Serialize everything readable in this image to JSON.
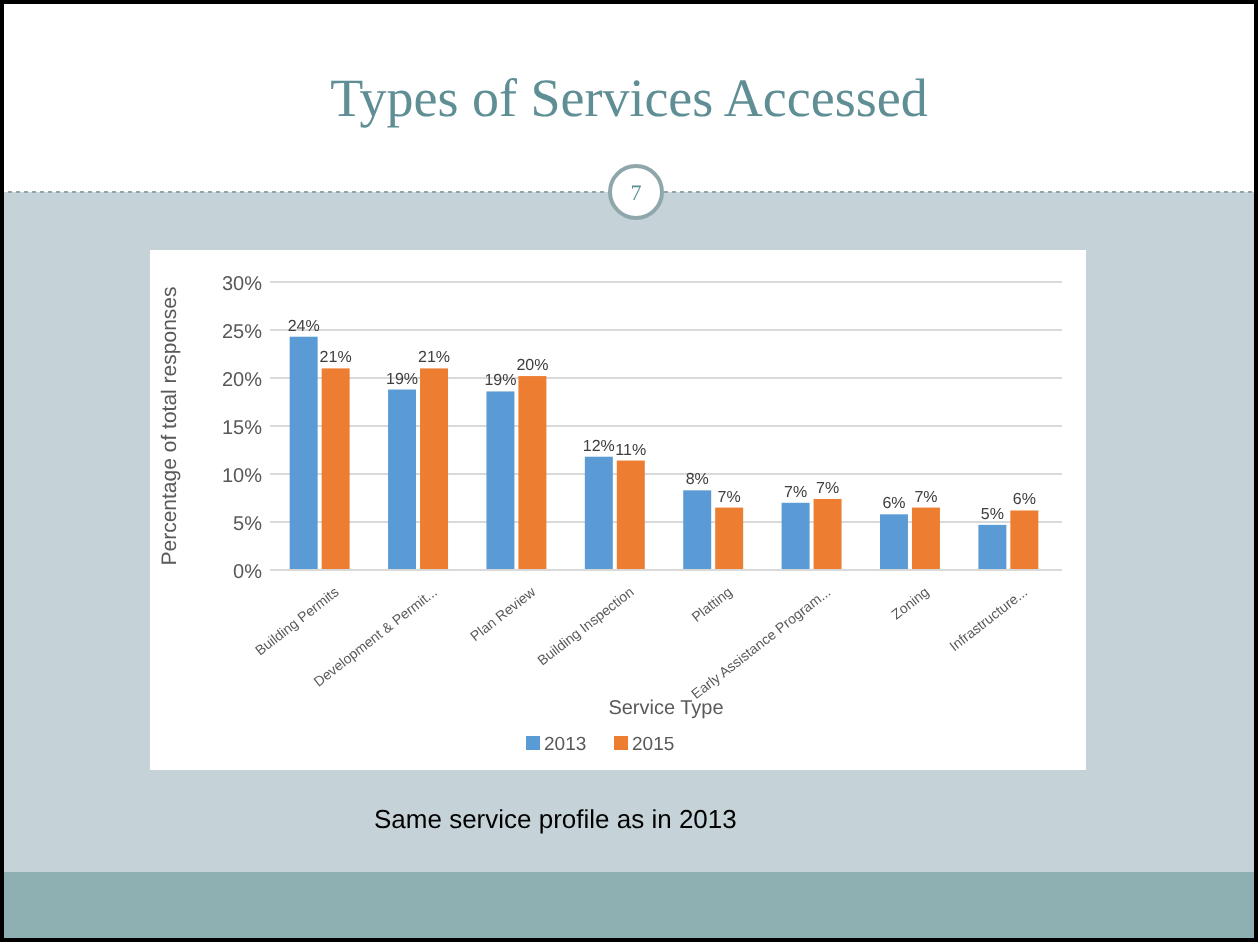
{
  "chart_data": {
    "type": "bar",
    "title": "Types of Services Accessed",
    "annotations": [
      "7",
      "Same service profile as in 2013"
    ],
    "xlabel": "Service Type",
    "ylabel": "Percentage of total responses",
    "categories": [
      "Building Permits",
      "Development & Permit...",
      "Plan Review",
      "Building Inspection",
      "Platting",
      "Early Assistance Program...",
      "Zoning",
      "Infrastructure..."
    ],
    "series": [
      {
        "name": "2013",
        "color": "#5b9bd5",
        "values": [
          24.3,
          18.8,
          18.6,
          11.8,
          8.3,
          7.0,
          5.8,
          4.7
        ],
        "value_labels": [
          "24%",
          "19%",
          "19%",
          "12%",
          "8%",
          "7%",
          "6%",
          "5%"
        ]
      },
      {
        "name": "2015",
        "color": "#ed7d31",
        "values": [
          21.0,
          21.0,
          20.2,
          11.4,
          6.5,
          7.4,
          6.5,
          6.2
        ],
        "value_labels": [
          "21%",
          "21%",
          "20%",
          "11%",
          "7%",
          "7%",
          "7%",
          "6%"
        ]
      }
    ],
    "ylim": [
      0,
      30
    ],
    "yticks": [
      {
        "value": 0,
        "label": "0%"
      },
      {
        "value": 5,
        "label": "5%"
      },
      {
        "value": 10,
        "label": "10%"
      },
      {
        "value": 15,
        "label": "15%"
      },
      {
        "value": 20,
        "label": "20%"
      },
      {
        "value": 25,
        "label": "25%"
      },
      {
        "value": 30,
        "label": "30%"
      }
    ],
    "grid": "y",
    "legend": "bottom"
  }
}
